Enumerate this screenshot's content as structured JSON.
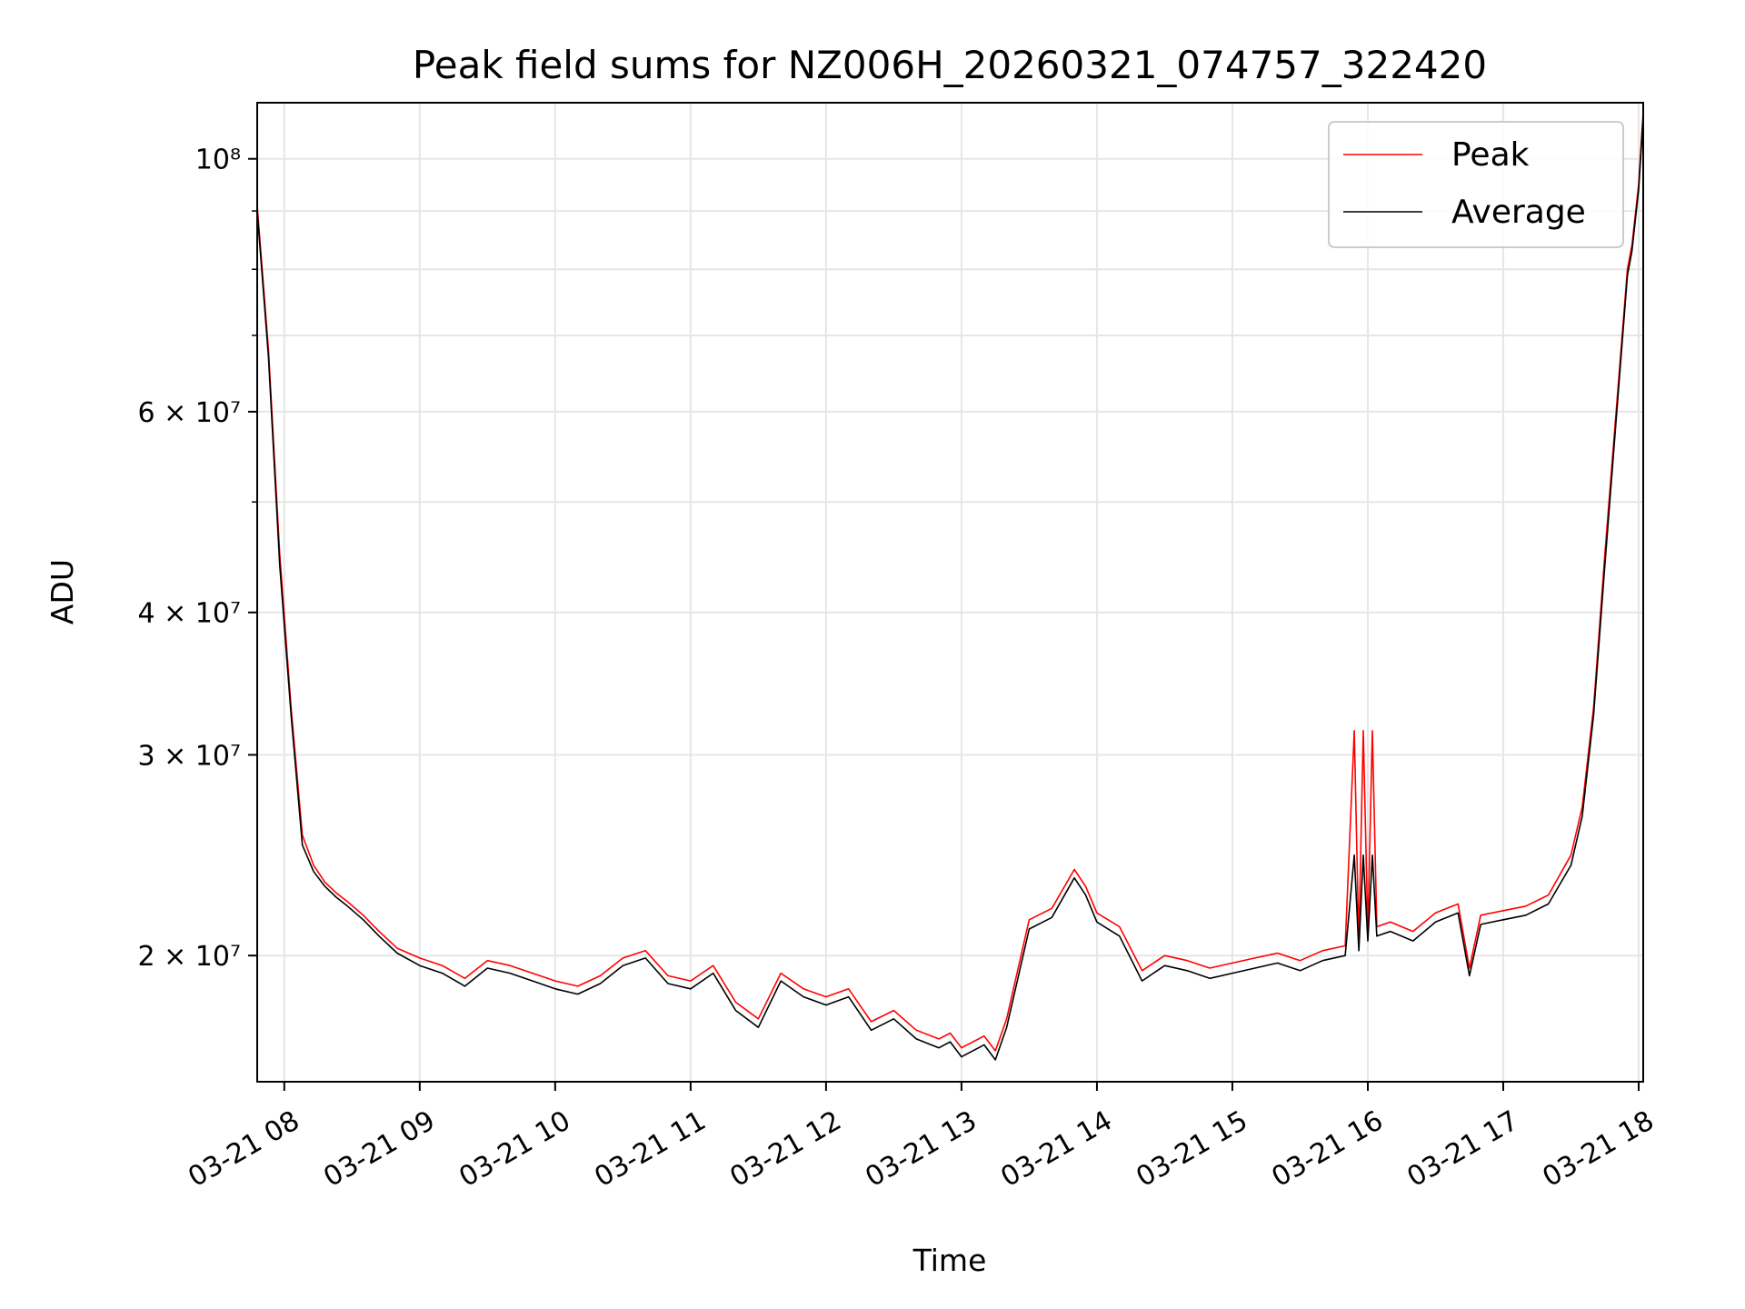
{
  "chart_data": {
    "type": "line",
    "title": "Peak field sums for NZ006H_20260321_074757_322420",
    "xlabel": "Time",
    "ylabel": "ADU",
    "y_scale": "log",
    "ylim": [
      15500000,
      112000000
    ],
    "xlim": [
      "03-21 07:48",
      "03-21 18:02"
    ],
    "x_ticks": [
      "03-21 08",
      "03-21 09",
      "03-21 10",
      "03-21 11",
      "03-21 12",
      "03-21 13",
      "03-21 14",
      "03-21 15",
      "03-21 16",
      "03-21 17",
      "03-21 18"
    ],
    "y_major_ticks": [
      {
        "value": 20000000,
        "label": "2 × 10⁷"
      },
      {
        "value": 30000000,
        "label": "3 × 10⁷"
      },
      {
        "value": 40000000,
        "label": "4 × 10⁷"
      },
      {
        "value": 60000000,
        "label": "6 × 10⁷"
      },
      {
        "value": 100000000,
        "label": "10⁸"
      }
    ],
    "y_minor_gridlines": [
      50000000,
      70000000,
      80000000,
      90000000
    ],
    "grid": true,
    "legend_position": "top-right",
    "x": [
      "03-21 07:48",
      "03-21 07:53",
      "03-21 07:58",
      "03-21 08:03",
      "03-21 08:08",
      "03-21 08:13",
      "03-21 08:18",
      "03-21 08:23",
      "03-21 08:28",
      "03-21 08:35",
      "03-21 08:42",
      "03-21 08:50",
      "03-21 09:00",
      "03-21 09:10",
      "03-21 09:20",
      "03-21 09:30",
      "03-21 09:40",
      "03-21 09:50",
      "03-21 10:00",
      "03-21 10:10",
      "03-21 10:20",
      "03-21 10:30",
      "03-21 10:40",
      "03-21 10:50",
      "03-21 11:00",
      "03-21 11:10",
      "03-21 11:20",
      "03-21 11:30",
      "03-21 11:40",
      "03-21 11:50",
      "03-21 12:00",
      "03-21 12:10",
      "03-21 12:20",
      "03-21 12:30",
      "03-21 12:40",
      "03-21 12:50",
      "03-21 12:55",
      "03-21 13:00",
      "03-21 13:10",
      "03-21 13:15",
      "03-21 13:20",
      "03-21 13:30",
      "03-21 13:40",
      "03-21 13:50",
      "03-21 13:55",
      "03-21 14:00",
      "03-21 14:10",
      "03-21 14:20",
      "03-21 14:30",
      "03-21 14:40",
      "03-21 14:50",
      "03-21 15:00",
      "03-21 15:10",
      "03-21 15:20",
      "03-21 15:30",
      "03-21 15:40",
      "03-21 15:50",
      "03-21 15:54",
      "03-21 15:56",
      "03-21 15:58",
      "03-21 16:00",
      "03-21 16:02",
      "03-21 16:04",
      "03-21 16:10",
      "03-21 16:20",
      "03-21 16:30",
      "03-21 16:40",
      "03-21 16:45",
      "03-21 16:50",
      "03-21 17:00",
      "03-21 17:10",
      "03-21 17:20",
      "03-21 17:30",
      "03-21 17:35",
      "03-21 17:40",
      "03-21 17:45",
      "03-21 17:50",
      "03-21 17:55",
      "03-21 17:57",
      "03-21 18:00",
      "03-21 18:02"
    ],
    "series": [
      {
        "name": "Peak",
        "color": "#ff0000",
        "values": [
          91000000,
          68000000,
          45000000,
          33000000,
          25500000,
          24000000,
          23200000,
          22700000,
          22300000,
          21700000,
          21000000,
          20300000,
          19900000,
          19600000,
          19100000,
          19800000,
          19600000,
          19300000,
          19000000,
          18800000,
          19200000,
          19900000,
          20200000,
          19200000,
          19000000,
          19600000,
          18200000,
          17600000,
          19300000,
          18700000,
          18400000,
          18700000,
          17500000,
          17900000,
          17200000,
          16900000,
          17100000,
          16600000,
          17000000,
          16500000,
          17600000,
          21500000,
          22000000,
          23800000,
          23000000,
          21800000,
          21200000,
          19400000,
          20000000,
          19800000,
          19500000,
          19700000,
          19900000,
          20100000,
          19800000,
          20200000,
          20400000,
          31500000,
          20500000,
          31500000,
          21000000,
          31500000,
          21200000,
          21400000,
          21000000,
          21800000,
          22200000,
          19500000,
          21700000,
          21900000,
          22100000,
          22600000,
          24500000,
          27000000,
          33000000,
          45000000,
          60000000,
          80000000,
          84000000,
          95000000,
          110000000
        ]
      },
      {
        "name": "Average",
        "color": "#000000",
        "values": [
          90000000,
          67000000,
          44000000,
          32500000,
          25000000,
          23700000,
          23000000,
          22500000,
          22100000,
          21500000,
          20800000,
          20100000,
          19600000,
          19300000,
          18800000,
          19500000,
          19300000,
          19000000,
          18700000,
          18500000,
          18900000,
          19600000,
          19900000,
          18900000,
          18700000,
          19300000,
          17900000,
          17300000,
          19000000,
          18400000,
          18100000,
          18400000,
          17200000,
          17600000,
          16900000,
          16600000,
          16800000,
          16300000,
          16700000,
          16200000,
          17300000,
          21100000,
          21600000,
          23400000,
          22600000,
          21400000,
          20800000,
          19000000,
          19600000,
          19400000,
          19100000,
          19300000,
          19500000,
          19700000,
          19400000,
          19800000,
          20000000,
          24500000,
          20200000,
          24500000,
          20600000,
          24500000,
          20800000,
          21000000,
          20600000,
          21400000,
          21800000,
          19200000,
          21300000,
          21500000,
          21700000,
          22200000,
          24000000,
          26500000,
          32500000,
          44000000,
          59000000,
          79000000,
          83000000,
          94000000,
          109000000
        ]
      }
    ]
  }
}
